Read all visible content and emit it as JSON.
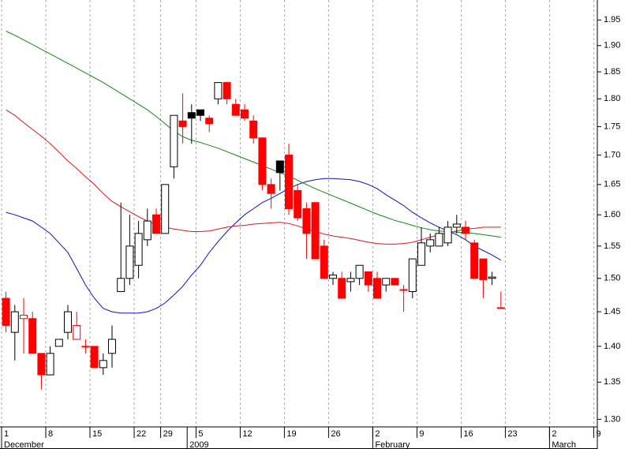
{
  "chart_data": {
    "type": "candlestick",
    "log": true,
    "ylim": [
      1.29,
      1.99
    ],
    "yticks": [
      {
        "value": 1.3,
        "label": "1.30"
      },
      1.35,
      {
        "value": 1.4,
        "label": "1.40"
      },
      1.45,
      {
        "value": 1.5,
        "label": "1.50"
      },
      1.55,
      {
        "value": 1.6,
        "label": "1.60"
      },
      1.65,
      {
        "value": 1.7,
        "label": "1.70"
      },
      1.75,
      {
        "value": 1.8,
        "label": "1.80"
      },
      1.85,
      {
        "value": 1.9,
        "label": "1.90"
      },
      1.95
    ],
    "grid": true,
    "up_color": "#000000",
    "down_color": "#ff0000",
    "categories": [
      "1",
      null,
      null,
      null,
      null,
      "8",
      null,
      null,
      null,
      null,
      "15",
      null,
      null,
      null,
      null,
      "22",
      null,
      null,
      "29",
      null,
      null,
      null,
      "5",
      null,
      null,
      null,
      null,
      "12",
      null,
      null,
      null,
      null,
      "19",
      null,
      null,
      null,
      null,
      "26",
      null,
      null,
      null,
      null,
      "2",
      null,
      null,
      null,
      null,
      "9",
      null,
      null,
      null,
      null,
      "16",
      null,
      null,
      null,
      null,
      "23",
      null,
      null,
      null,
      null,
      "2",
      null,
      null,
      null,
      null,
      "9"
    ],
    "months": [
      {
        "label": "December",
        "index": 0
      },
      {
        "label": "2009",
        "index": 21
      },
      {
        "label": "February",
        "index": 42
      },
      {
        "label": "March",
        "index": 62
      }
    ],
    "open": [
      1.47,
      1.42,
      1.44,
      1.44,
      1.39,
      1.36,
      1.4,
      1.42,
      1.41,
      1.4,
      1.4,
      1.37,
      1.39,
      1.48,
      1.5,
      1.52,
      1.56,
      1.6,
      1.57,
      1.68,
      1.76,
      1.775,
      1.78,
      1.765,
      1.8,
      1.83,
      1.79,
      1.78,
      1.76,
      1.73,
      1.65,
      1.69,
      1.7,
      1.64,
      1.61,
      1.62,
      1.55,
      1.5,
      1.5,
      1.495,
      1.5,
      1.51,
      1.5,
      1.49,
      1.5,
      1.483,
      1.48,
      1.52,
      1.55,
      1.55,
      1.555,
      1.58,
      1.58,
      1.555,
      1.53,
      1.5,
      1.456,
      null,
      null,
      null,
      null,
      null,
      null,
      null,
      null,
      null,
      null,
      null
    ],
    "high": [
      1.48,
      1.46,
      1.47,
      1.45,
      1.39,
      1.4,
      1.41,
      1.46,
      1.45,
      1.41,
      1.4,
      1.39,
      1.43,
      1.62,
      1.6,
      1.59,
      1.61,
      1.61,
      1.65,
      1.77,
      1.81,
      1.79,
      1.78,
      1.77,
      1.83,
      1.83,
      1.8,
      1.79,
      1.77,
      1.73,
      1.66,
      1.69,
      1.72,
      1.65,
      1.62,
      1.62,
      1.56,
      1.51,
      1.51,
      1.51,
      1.52,
      1.51,
      1.51,
      1.5,
      1.5,
      1.49,
      1.53,
      1.58,
      1.57,
      1.58,
      1.59,
      1.6,
      1.59,
      1.56,
      1.53,
      1.51,
      1.48,
      null,
      null,
      null,
      null,
      null,
      null,
      null,
      null,
      null,
      null,
      null
    ],
    "low": [
      1.42,
      1.38,
      1.39,
      1.39,
      1.34,
      1.36,
      1.4,
      1.41,
      1.41,
      1.39,
      1.37,
      1.36,
      1.37,
      1.48,
      1.49,
      1.5,
      1.55,
      1.57,
      1.57,
      1.66,
      1.72,
      1.72,
      1.76,
      1.74,
      1.79,
      1.79,
      1.77,
      1.76,
      1.72,
      1.64,
      1.61,
      1.64,
      1.6,
      1.59,
      1.53,
      1.53,
      1.5,
      1.49,
      1.47,
      1.48,
      1.49,
      1.48,
      1.47,
      1.48,
      1.49,
      1.45,
      1.47,
      1.52,
      1.54,
      1.55,
      1.55,
      1.57,
      1.56,
      1.5,
      1.47,
      1.49,
      1.455,
      null,
      null,
      null,
      null,
      null,
      null,
      null,
      null,
      null,
      null,
      null
    ],
    "close": [
      1.43,
      1.45,
      1.445,
      1.39,
      1.36,
      1.39,
      1.41,
      1.45,
      1.43,
      1.399,
      1.37,
      1.38,
      1.41,
      1.5,
      1.55,
      1.57,
      1.59,
      1.57,
      1.65,
      1.77,
      1.75,
      1.765,
      1.77,
      1.755,
      1.83,
      1.8,
      1.77,
      1.765,
      1.73,
      1.65,
      1.635,
      1.67,
      1.61,
      1.595,
      1.57,
      1.53,
      1.5,
      1.505,
      1.47,
      1.5,
      1.52,
      1.49,
      1.47,
      1.5,
      1.49,
      1.482,
      1.53,
      1.555,
      1.56,
      1.57,
      1.58,
      1.585,
      1.57,
      1.5,
      1.498,
      1.502,
      1.455,
      null,
      null,
      null,
      null,
      null,
      null,
      null,
      null,
      null,
      null,
      null
    ],
    "series": [
      {
        "color": "#1010c8",
        "values": [
          1.604,
          1.6,
          1.595,
          1.59,
          1.58,
          1.57,
          1.555,
          1.54,
          1.515,
          1.49,
          1.47,
          1.455,
          1.45,
          1.448,
          1.448,
          1.448,
          1.45,
          1.455,
          1.463,
          1.475,
          1.488,
          1.505,
          1.52,
          1.54,
          1.557,
          1.573,
          1.587,
          1.6,
          1.61,
          1.62,
          1.627,
          1.635,
          1.643,
          1.65,
          1.655,
          1.658,
          1.66,
          1.66,
          1.659,
          1.658,
          1.655,
          1.65,
          1.643,
          1.633,
          1.624,
          1.615,
          1.604,
          1.595,
          1.587,
          1.58,
          1.574,
          1.568,
          1.56,
          1.55,
          1.543,
          1.536,
          1.528,
          null,
          null,
          null,
          null,
          null,
          null,
          null,
          null,
          null,
          null,
          null
        ]
      },
      {
        "color": "#e01818",
        "values": [
          1.78,
          1.77,
          1.757,
          1.745,
          1.733,
          1.72,
          1.705,
          1.69,
          1.677,
          1.663,
          1.65,
          1.635,
          1.622,
          1.613,
          1.605,
          1.597,
          1.59,
          1.584,
          1.58,
          1.577,
          1.575,
          1.573,
          1.573,
          1.574,
          1.577,
          1.58,
          1.582,
          1.583,
          1.585,
          1.586,
          1.587,
          1.588,
          1.586,
          1.582,
          1.577,
          1.573,
          1.569,
          1.566,
          1.564,
          1.562,
          1.559,
          1.556,
          1.554,
          1.553,
          1.553,
          1.554,
          1.556,
          1.56,
          1.564,
          1.568,
          1.571,
          1.574,
          1.577,
          1.578,
          1.58,
          1.58,
          1.58,
          null,
          null,
          null,
          null,
          null,
          null,
          null,
          null,
          null,
          null,
          null
        ]
      },
      {
        "color": "#108a10",
        "values": [
          1.928,
          1.92,
          1.911,
          1.902,
          1.893,
          1.884,
          1.875,
          1.866,
          1.857,
          1.848,
          1.839,
          1.83,
          1.82,
          1.81,
          1.8,
          1.79,
          1.78,
          1.768,
          1.755,
          1.742,
          1.732,
          1.726,
          1.722,
          1.717,
          1.712,
          1.706,
          1.7,
          1.694,
          1.688,
          1.682,
          1.676,
          1.67,
          1.664,
          1.657,
          1.65,
          1.643,
          1.637,
          1.631,
          1.625,
          1.619,
          1.613,
          1.607,
          1.601,
          1.596,
          1.591,
          1.587,
          1.583,
          1.579,
          1.576,
          1.574,
          1.573,
          1.572,
          1.571,
          1.57,
          1.568,
          1.566,
          1.564,
          null,
          null,
          null,
          null,
          null,
          null,
          null,
          null,
          null,
          null,
          null
        ]
      }
    ]
  }
}
